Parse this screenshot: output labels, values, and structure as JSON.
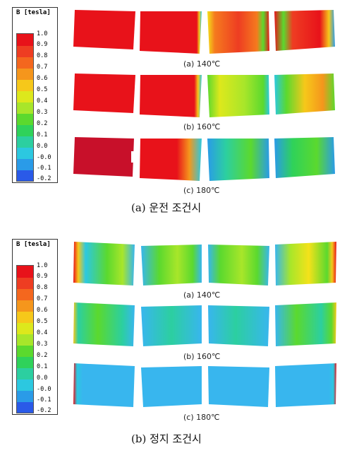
{
  "sections": [
    {
      "legend": {
        "title": "B [tesla]",
        "ticks": [
          "1.0",
          "0.9",
          "0.8",
          "0.7",
          "0.6",
          "0.5",
          "0.4",
          "0.3",
          "0.2",
          "0.1",
          "0.0",
          "-0.0",
          "-0.1",
          "-0.2"
        ]
      },
      "rows": [
        {
          "caption": "(a) 140℃"
        },
        {
          "caption": "(b) 160℃"
        },
        {
          "caption": "(c) 180℃"
        }
      ],
      "caption": "(a) 운전 조건시"
    },
    {
      "legend": {
        "title": "B [tesla]",
        "ticks": [
          "1.0",
          "0.9",
          "0.8",
          "0.7",
          "0.6",
          "0.5",
          "0.4",
          "0.3",
          "0.2",
          "0.1",
          "0.0",
          "-0.0",
          "-0.1",
          "-0.2"
        ]
      },
      "rows": [
        {
          "caption": "(a) 140℃"
        },
        {
          "caption": "(b) 160℃"
        },
        {
          "caption": "(c) 180℃"
        }
      ],
      "caption": "(b) 정지 조건시"
    }
  ],
  "colors": {
    "red": "#e8121a",
    "dark_red": "#c8102a",
    "orange": "#f57a1e",
    "yellow": "#f4e21a",
    "green": "#5bd92e",
    "light_green": "#9be33a",
    "cyan": "#2cc8e0",
    "blue": "#2a9be8",
    "light_blue": "#38b6ee"
  }
}
